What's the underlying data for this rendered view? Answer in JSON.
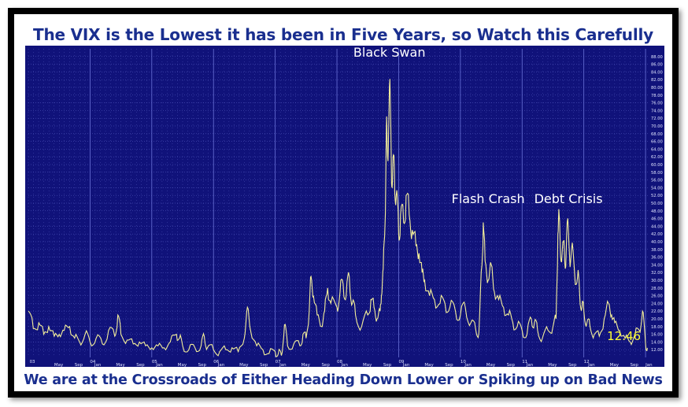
{
  "title": "The VIX is the Lowest it has been in Five Years, so Watch this Carefully",
  "subtitle": "We are at the Crossroads of Either Heading Down Lower or Spiking up on Bad News",
  "colors": {
    "frame": "#000000",
    "plot_background": "#10127a",
    "grid": "#5a62c8",
    "line": "#f4ef9a",
    "title_text": "#1a2f8f",
    "annotation_text": "#ffffff",
    "last_value_text": "#ffff33",
    "tick_text": "#dfe3ff"
  },
  "chart_data": {
    "type": "line",
    "title": "The VIX is the Lowest it has been in Five Years, so Watch this Carefully",
    "xlabel": "",
    "ylabel": "",
    "xlim": [
      2003.0,
      2013.05
    ],
    "ylim": [
      10,
      90
    ],
    "grid": true,
    "y_ticks": [
      "12.00",
      "14.00",
      "16.00",
      "18.00",
      "20.00",
      "22.00",
      "24.00",
      "26.00",
      "28.00",
      "30.00",
      "32.00",
      "34.00",
      "36.00",
      "38.00",
      "40.00",
      "42.00",
      "44.00",
      "46.00",
      "48.00",
      "50.00",
      "52.00",
      "54.00",
      "56.00",
      "58.00",
      "60.00",
      "62.00",
      "64.00",
      "66.00",
      "68.00",
      "70.00",
      "72.00",
      "74.00",
      "76.00",
      "78.00",
      "80.00",
      "82.00",
      "84.00",
      "86.00",
      "88.00"
    ],
    "x_ticks": [
      {
        "x": 2003.02,
        "label": "03"
      },
      {
        "x": 2003.42,
        "label": "May"
      },
      {
        "x": 2003.75,
        "label": "Sep"
      },
      {
        "x": 2004.0,
        "label": "04"
      },
      {
        "x": 2004.07,
        "label": "Jan"
      },
      {
        "x": 2004.42,
        "label": "May"
      },
      {
        "x": 2004.75,
        "label": "Sep"
      },
      {
        "x": 2005.0,
        "label": "05"
      },
      {
        "x": 2005.07,
        "label": "Jan"
      },
      {
        "x": 2005.42,
        "label": "May"
      },
      {
        "x": 2005.75,
        "label": "Sep"
      },
      {
        "x": 2006.0,
        "label": "06"
      },
      {
        "x": 2006.07,
        "label": "Jan"
      },
      {
        "x": 2006.42,
        "label": "May"
      },
      {
        "x": 2006.75,
        "label": "Sep"
      },
      {
        "x": 2007.0,
        "label": "07"
      },
      {
        "x": 2007.07,
        "label": "Jan"
      },
      {
        "x": 2007.42,
        "label": "May"
      },
      {
        "x": 2007.75,
        "label": "Sep"
      },
      {
        "x": 2008.0,
        "label": "08"
      },
      {
        "x": 2008.07,
        "label": "Jan"
      },
      {
        "x": 2008.42,
        "label": "May"
      },
      {
        "x": 2008.75,
        "label": "Sep"
      },
      {
        "x": 2009.0,
        "label": "09"
      },
      {
        "x": 2009.07,
        "label": "Jan"
      },
      {
        "x": 2009.42,
        "label": "May"
      },
      {
        "x": 2009.75,
        "label": "Sep"
      },
      {
        "x": 2010.0,
        "label": "10"
      },
      {
        "x": 2010.07,
        "label": "Jan"
      },
      {
        "x": 2010.42,
        "label": "May"
      },
      {
        "x": 2010.75,
        "label": "Sep"
      },
      {
        "x": 2011.0,
        "label": "11"
      },
      {
        "x": 2011.07,
        "label": "Jan"
      },
      {
        "x": 2011.42,
        "label": "May"
      },
      {
        "x": 2011.75,
        "label": "Sep"
      },
      {
        "x": 2012.0,
        "label": "12"
      },
      {
        "x": 2012.07,
        "label": "Jan"
      },
      {
        "x": 2012.42,
        "label": "May"
      },
      {
        "x": 2012.75,
        "label": "Sep"
      },
      {
        "x": 2013.0,
        "label": "Jan"
      }
    ],
    "annotations": [
      {
        "text": "Black Swan",
        "x": 2008.85,
        "y": 88
      },
      {
        "text": "Flash Crash",
        "x": 2010.45,
        "y": 50
      },
      {
        "text": "Debt Crisis",
        "x": 2011.75,
        "y": 50
      }
    ],
    "last_value": {
      "text": "12.46",
      "x": 2013.0,
      "y": 12.46
    },
    "series": [
      {
        "values": [
          [
            2003.0,
            22
          ],
          [
            2003.08,
            17.5
          ],
          [
            2003.17,
            19
          ],
          [
            2003.25,
            16
          ],
          [
            2003.33,
            18
          ],
          [
            2003.42,
            15.5
          ],
          [
            2003.5,
            16
          ],
          [
            2003.58,
            17
          ],
          [
            2003.67,
            18
          ],
          [
            2003.75,
            15
          ],
          [
            2003.83,
            14
          ],
          [
            2003.92,
            16
          ],
          [
            2004.0,
            14
          ],
          [
            2004.1,
            15
          ],
          [
            2004.2,
            13.5
          ],
          [
            2004.3,
            17
          ],
          [
            2004.4,
            15.5
          ],
          [
            2004.45,
            21
          ],
          [
            2004.5,
            16
          ],
          [
            2004.6,
            14.5
          ],
          [
            2004.7,
            13.5
          ],
          [
            2004.8,
            14
          ],
          [
            2004.9,
            13
          ],
          [
            2005.0,
            12.5
          ],
          [
            2005.1,
            13
          ],
          [
            2005.2,
            12.5
          ],
          [
            2005.3,
            14
          ],
          [
            2005.4,
            16
          ],
          [
            2005.45,
            15
          ],
          [
            2005.5,
            13
          ],
          [
            2005.6,
            12
          ],
          [
            2005.7,
            12.5
          ],
          [
            2005.8,
            13
          ],
          [
            2005.85,
            15.5
          ],
          [
            2005.9,
            12.5
          ],
          [
            2006.0,
            12
          ],
          [
            2006.1,
            11.5
          ],
          [
            2006.2,
            12
          ],
          [
            2006.3,
            12.5
          ],
          [
            2006.4,
            11.5
          ],
          [
            2006.5,
            15
          ],
          [
            2006.55,
            23
          ],
          [
            2006.6,
            17
          ],
          [
            2006.7,
            13
          ],
          [
            2006.8,
            12
          ],
          [
            2006.9,
            11
          ],
          [
            2007.0,
            11.5
          ],
          [
            2007.05,
            11
          ],
          [
            2007.1,
            10.5
          ],
          [
            2007.15,
            18.5
          ],
          [
            2007.2,
            13
          ],
          [
            2007.3,
            13.5
          ],
          [
            2007.4,
            13
          ],
          [
            2007.45,
            16
          ],
          [
            2007.5,
            15
          ],
          [
            2007.55,
            22
          ],
          [
            2007.58,
            31
          ],
          [
            2007.62,
            26
          ],
          [
            2007.68,
            21
          ],
          [
            2007.75,
            18
          ],
          [
            2007.8,
            22
          ],
          [
            2007.85,
            28
          ],
          [
            2007.9,
            24
          ],
          [
            2008.0,
            23
          ],
          [
            2008.05,
            27
          ],
          [
            2008.1,
            29
          ],
          [
            2008.15,
            26
          ],
          [
            2008.2,
            31
          ],
          [
            2008.25,
            24
          ],
          [
            2008.3,
            21
          ],
          [
            2008.4,
            18
          ],
          [
            2008.5,
            21
          ],
          [
            2008.55,
            25
          ],
          [
            2008.6,
            23
          ],
          [
            2008.65,
            20
          ],
          [
            2008.7,
            22
          ],
          [
            2008.72,
            26
          ],
          [
            2008.75,
            33
          ],
          [
            2008.78,
            45
          ],
          [
            2008.8,
            69
          ],
          [
            2008.82,
            62
          ],
          [
            2008.85,
            80
          ],
          [
            2008.88,
            62
          ],
          [
            2008.9,
            56
          ],
          [
            2008.93,
            59
          ],
          [
            2008.96,
            52
          ],
          [
            2009.0,
            42
          ],
          [
            2009.03,
            47
          ],
          [
            2009.08,
            45
          ],
          [
            2009.12,
            52
          ],
          [
            2009.17,
            47
          ],
          [
            2009.22,
            43
          ],
          [
            2009.28,
            39
          ],
          [
            2009.33,
            37
          ],
          [
            2009.38,
            32
          ],
          [
            2009.42,
            30
          ],
          [
            2009.5,
            26
          ],
          [
            2009.58,
            25
          ],
          [
            2009.67,
            24
          ],
          [
            2009.75,
            24
          ],
          [
            2009.83,
            23
          ],
          [
            2009.92,
            22
          ],
          [
            2010.0,
            21
          ],
          [
            2010.08,
            23
          ],
          [
            2010.17,
            19
          ],
          [
            2010.25,
            17
          ],
          [
            2010.3,
            16.5
          ],
          [
            2010.35,
            34
          ],
          [
            2010.37,
            45
          ],
          [
            2010.4,
            35
          ],
          [
            2010.45,
            30
          ],
          [
            2010.5,
            34
          ],
          [
            2010.55,
            27
          ],
          [
            2010.62,
            25
          ],
          [
            2010.7,
            23
          ],
          [
            2010.78,
            21
          ],
          [
            2010.85,
            19
          ],
          [
            2010.92,
            18
          ],
          [
            2011.0,
            17
          ],
          [
            2011.08,
            16
          ],
          [
            2011.15,
            20
          ],
          [
            2011.2,
            19
          ],
          [
            2011.25,
            17
          ],
          [
            2011.33,
            15
          ],
          [
            2011.42,
            17
          ],
          [
            2011.5,
            18
          ],
          [
            2011.55,
            20
          ],
          [
            2011.58,
            42
          ],
          [
            2011.6,
            47
          ],
          [
            2011.63,
            35
          ],
          [
            2011.67,
            40
          ],
          [
            2011.7,
            33
          ],
          [
            2011.73,
            45
          ],
          [
            2011.77,
            36
          ],
          [
            2011.8,
            38
          ],
          [
            2011.85,
            32
          ],
          [
            2011.9,
            31
          ],
          [
            2011.93,
            27
          ],
          [
            2011.97,
            23
          ],
          [
            2012.0,
            22
          ],
          [
            2012.05,
            19
          ],
          [
            2012.1,
            18
          ],
          [
            2012.17,
            16
          ],
          [
            2012.25,
            15.5
          ],
          [
            2012.33,
            20
          ],
          [
            2012.4,
            24
          ],
          [
            2012.45,
            21
          ],
          [
            2012.5,
            19
          ],
          [
            2012.58,
            17
          ],
          [
            2012.67,
            15
          ],
          [
            2012.75,
            14
          ],
          [
            2012.83,
            16
          ],
          [
            2012.9,
            17
          ],
          [
            2012.95,
            22
          ],
          [
            2013.0,
            13.5
          ],
          [
            2013.03,
            12.46
          ]
        ]
      }
    ]
  }
}
